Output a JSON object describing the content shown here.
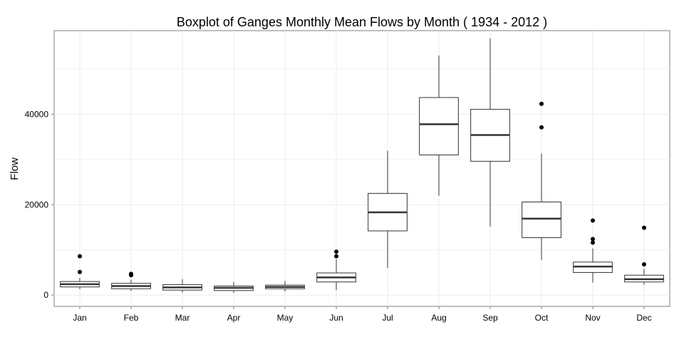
{
  "chart_data": {
    "type": "boxplot",
    "title": "Boxplot of Ganges Monthly Mean Flows by Month ( 1934 - 2012 )",
    "xlabel": "",
    "ylabel": "Flow",
    "ylim": [
      -2500,
      58500
    ],
    "y_ticks": [
      0,
      20000,
      40000
    ],
    "y_minor_ticks": [
      10000,
      30000,
      50000
    ],
    "grid": true,
    "background": "#ffffff",
    "grid_color": "#ebebeb",
    "line_color": "#333333",
    "categories": [
      "Jan",
      "Feb",
      "Mar",
      "Apr",
      "May",
      "Jun",
      "Jul",
      "Aug",
      "Sep",
      "Oct",
      "Nov",
      "Dec"
    ],
    "boxes": [
      {
        "category": "Jan",
        "whisker_low": 1300,
        "q1": 1800,
        "median": 2400,
        "q3": 3000,
        "whisker_high": 3800,
        "outliers": [
          5100,
          8600
        ]
      },
      {
        "category": "Feb",
        "whisker_low": 900,
        "q1": 1400,
        "median": 2000,
        "q3": 2600,
        "whisker_high": 3400,
        "outliers": [
          4400,
          4700
        ]
      },
      {
        "category": "Mar",
        "whisker_low": 600,
        "q1": 1100,
        "median": 1700,
        "q3": 2300,
        "whisker_high": 3500,
        "outliers": []
      },
      {
        "category": "Apr",
        "whisker_low": 500,
        "q1": 1000,
        "median": 1600,
        "q3": 2000,
        "whisker_high": 2900,
        "outliers": []
      },
      {
        "category": "May",
        "whisker_low": 800,
        "q1": 1400,
        "median": 1800,
        "q3": 2200,
        "whisker_high": 3100,
        "outliers": []
      },
      {
        "category": "Jun",
        "whisker_low": 1100,
        "q1": 2900,
        "median": 3900,
        "q3": 4900,
        "whisker_high": 7900,
        "outliers": [
          8600,
          9600
        ]
      },
      {
        "category": "Jul",
        "whisker_low": 6000,
        "q1": 14200,
        "median": 18300,
        "q3": 22500,
        "whisker_high": 31900,
        "outliers": []
      },
      {
        "category": "Aug",
        "whisker_low": 22000,
        "q1": 31000,
        "median": 37800,
        "q3": 43700,
        "whisker_high": 53000,
        "outliers": []
      },
      {
        "category": "Sep",
        "whisker_low": 15200,
        "q1": 29600,
        "median": 35400,
        "q3": 41100,
        "whisker_high": 56800,
        "outliers": []
      },
      {
        "category": "Oct",
        "whisker_low": 7800,
        "q1": 12700,
        "median": 16900,
        "q3": 20600,
        "whisker_high": 31300,
        "outliers": [
          37100,
          42300
        ]
      },
      {
        "category": "Nov",
        "whisker_low": 2800,
        "q1": 5000,
        "median": 6300,
        "q3": 7300,
        "whisker_high": 10300,
        "outliers": [
          11600,
          12400,
          16500
        ]
      },
      {
        "category": "Dec",
        "whisker_low": 2300,
        "q1": 2900,
        "median": 3500,
        "q3": 4400,
        "whisker_high": 5800,
        "outliers": [
          6800,
          14900
        ]
      }
    ]
  }
}
